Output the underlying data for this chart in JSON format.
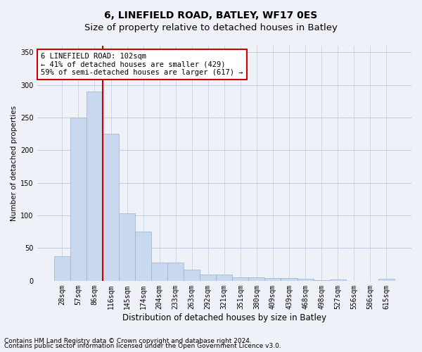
{
  "title": "6, LINEFIELD ROAD, BATLEY, WF17 0ES",
  "subtitle": "Size of property relative to detached houses in Batley",
  "xlabel": "Distribution of detached houses by size in Batley",
  "ylabel": "Number of detached properties",
  "categories": [
    "28sqm",
    "57sqm",
    "86sqm",
    "116sqm",
    "145sqm",
    "174sqm",
    "204sqm",
    "233sqm",
    "263sqm",
    "292sqm",
    "321sqm",
    "351sqm",
    "380sqm",
    "409sqm",
    "439sqm",
    "468sqm",
    "498sqm",
    "527sqm",
    "556sqm",
    "586sqm",
    "615sqm"
  ],
  "values": [
    38,
    250,
    290,
    225,
    103,
    75,
    28,
    28,
    17,
    9,
    10,
    5,
    5,
    4,
    4,
    3,
    1,
    2,
    0,
    0,
    3
  ],
  "bar_color": "#c8d8ee",
  "bar_edge_color": "#9ab0cc",
  "vline_color": "#cc0000",
  "vline_x_index": 2.5,
  "annotation_text": "6 LINEFIELD ROAD: 102sqm\n← 41% of detached houses are smaller (429)\n59% of semi-detached houses are larger (617) →",
  "annotation_box_facecolor": "white",
  "annotation_box_edgecolor": "#cc0000",
  "footnote1": "Contains HM Land Registry data © Crown copyright and database right 2024.",
  "footnote2": "Contains public sector information licensed under the Open Government Licence v3.0.",
  "background_color": "#eef2f8",
  "grid_color": "#c0cce0",
  "title_fontsize": 10,
  "subtitle_fontsize": 9.5,
  "ylabel_fontsize": 7.5,
  "xlabel_fontsize": 8.5,
  "tick_fontsize": 7,
  "annot_fontsize": 7.5,
  "footnote_fontsize": 6.5,
  "ylim": [
    0,
    360
  ],
  "yticks": [
    0,
    50,
    100,
    150,
    200,
    250,
    300,
    350
  ]
}
